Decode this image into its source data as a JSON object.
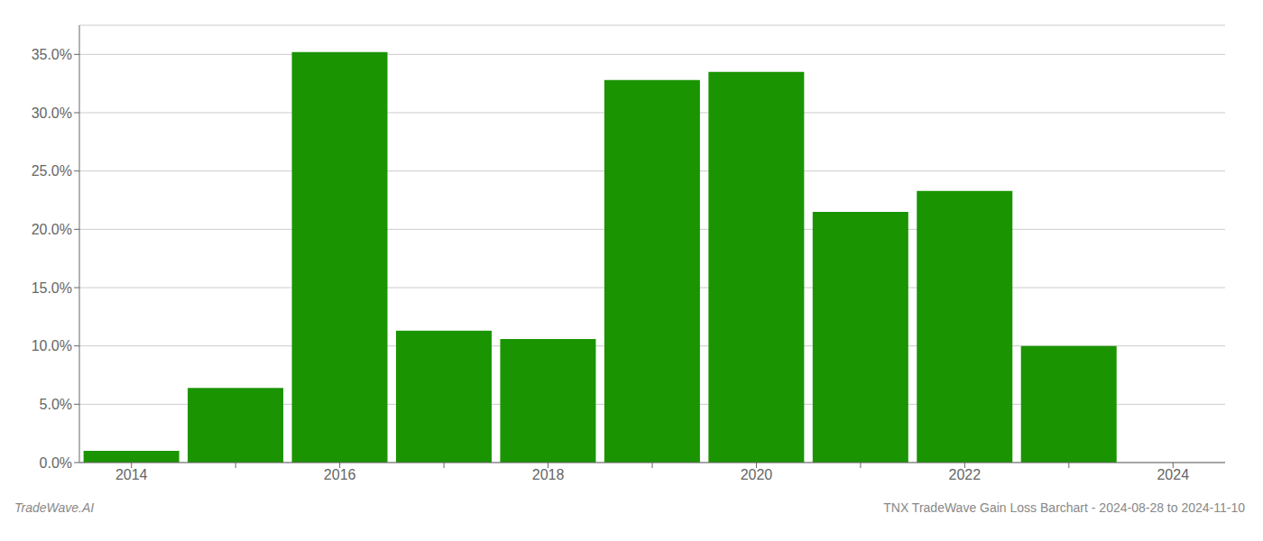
{
  "chart_data": {
    "type": "bar",
    "categories": [
      "2014",
      null,
      "2016",
      null,
      "2018",
      null,
      "2020",
      null,
      "2022",
      null,
      "2024"
    ],
    "values": [
      0.01,
      0.064,
      0.352,
      0.113,
      0.106,
      0.328,
      0.335,
      0.215,
      0.233,
      0.1,
      null
    ],
    "color": "#1a9400",
    "ylim": [
      0,
      0.375
    ],
    "yticks": [
      {
        "value": 0.0,
        "label": "0.0%"
      },
      {
        "value": 0.05,
        "label": "5.0%"
      },
      {
        "value": 0.1,
        "label": "10.0%"
      },
      {
        "value": 0.15,
        "label": "15.0%"
      },
      {
        "value": 0.2,
        "label": "20.0%"
      },
      {
        "value": 0.25,
        "label": "25.0%"
      },
      {
        "value": 0.3,
        "label": "30.0%"
      },
      {
        "value": 0.35,
        "label": "35.0%"
      }
    ],
    "grid": true,
    "annotations": [
      "TradeWave.AI",
      "TNX TradeWave Gain Loss Barchart - 2024-08-28 to 2024-11-10"
    ]
  }
}
